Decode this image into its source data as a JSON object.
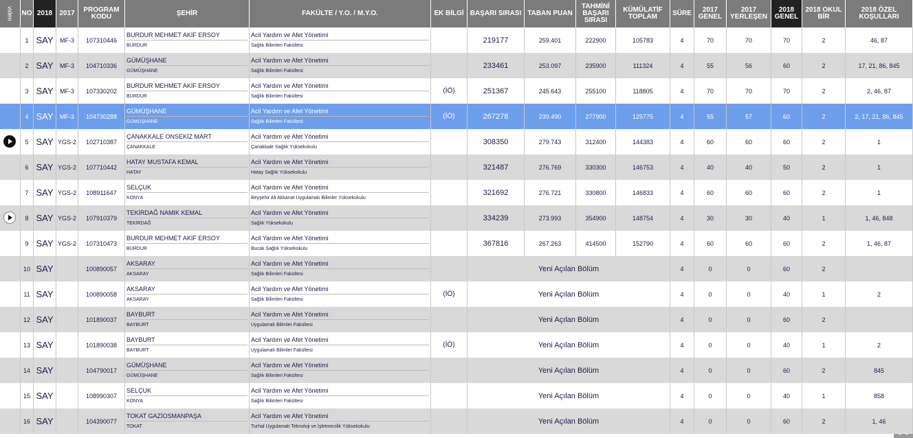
{
  "header": {
    "columns": [
      "video",
      "NO",
      "2018",
      "2017",
      "PROGRAM KODU",
      "ŞEHİR",
      "FAKÜLTE / Y.O. / M.Y.O.",
      "EK BİLGİ",
      "BAŞARI SIRASI",
      "TABAN PUAN",
      "TAHMİNİ BAŞARI SIRASI",
      "KÜMÜLATİF TOPLAM",
      "SÜRE",
      "2017 GENEL",
      "2017 YERLEŞEN",
      "2018 GENEL",
      "2018 OKUL BİR",
      "2018 ÖZEL KOŞULLARI"
    ]
  },
  "table": {
    "rows": [
      {
        "no": 1,
        "type2018": "SAY",
        "type2017": "MF-3",
        "code": "107310446",
        "university": "BURDUR MEHMET AKİF ERSOY",
        "city": "BURDUR",
        "program": "Acil Yardım ve Afet Yönetimi",
        "faculty": "Sağlık Bilimleri Fakültesi",
        "rank": 219177,
        "score": "259.401",
        "est_rank": 222900,
        "cumulative": 105783,
        "duration": 4,
        "quota2017": 70,
        "placed2017": 70,
        "quota2018": 70,
        "school_first": 2,
        "conditions": "46, 87"
      },
      {
        "no": 2,
        "type2018": "SAY",
        "type2017": "MF-3",
        "code": "104710336",
        "university": "GÜMÜŞHANE",
        "city": "GÜMÜŞHANE",
        "program": "Acil Yardım ve Afet Yönetimi",
        "faculty": "Sağlık Bilimleri Fakültesi",
        "rank": 233461,
        "score": "253.097",
        "est_rank": 235900,
        "cumulative": 111324,
        "duration": 4,
        "quota2017": 55,
        "placed2017": 56,
        "quota2018": 60,
        "school_first": 2,
        "conditions": "17, 21, 86, 845"
      },
      {
        "no": 3,
        "type2018": "SAY",
        "type2017": "MF-3",
        "code": "107330202",
        "university": "BURDUR MEHMET AKİF ERSOY",
        "city": "BURDUR",
        "program": "Acil Yardım ve Afet Yönetimi",
        "faculty": "Sağlık Bilimleri Fakültesi",
        "note": "(İÖ)",
        "rank": 251367,
        "score": "245.643",
        "est_rank": 255100,
        "cumulative": 118805,
        "duration": 4,
        "quota2017": 70,
        "placed2017": 70,
        "quota2018": 70,
        "school_first": 2,
        "conditions": "2, 46, 87"
      },
      {
        "no": 4,
        "type2018": "SAY",
        "type2017": "MF-3",
        "code": "104730288",
        "university": "GÜMÜŞHANE",
        "city": "GÜMÜŞHANE",
        "program": "Acil Yardım ve Afet Yönetimi",
        "faculty": "Sağlık Bilimleri Fakültesi",
        "note": "(İÖ)",
        "rank": 267278,
        "score": "239.490",
        "est_rank": 277900,
        "cumulative": 125775,
        "duration": 4,
        "quota2017": 55,
        "placed2017": 57,
        "quota2018": 60,
        "school_first": 2,
        "conditions": "2, 17, 21, 86, 845",
        "selected": true
      },
      {
        "no": 5,
        "video": true,
        "type2018": "SAY",
        "type2017": "YGS-2",
        "code": "102710387",
        "university": "ÇANAKKALE ONSEKİZ MART",
        "city": "ÇANAKKALE",
        "program": "Acil Yardım ve Afet Yönetimi",
        "faculty": "Çanakkale Sağlık Yüksekokulu",
        "rank": 308350,
        "score": "279.743",
        "est_rank": 312400,
        "cumulative": 144383,
        "duration": 4,
        "quota2017": 60,
        "placed2017": 60,
        "quota2018": 60,
        "school_first": 2,
        "conditions": "1"
      },
      {
        "no": 6,
        "type2018": "SAY",
        "type2017": "YGS-2",
        "code": "107710442",
        "university": "HATAY MUSTAFA KEMAL",
        "city": "HATAY",
        "program": "Acil Yardım ve Afet Yönetimi",
        "faculty": "Hatay Sağlık Yüksekokulu",
        "rank": 321487,
        "score": "276.769",
        "est_rank": 330300,
        "cumulative": 146753,
        "duration": 4,
        "quota2017": 40,
        "placed2017": 40,
        "quota2018": 50,
        "school_first": 2,
        "conditions": "1"
      },
      {
        "no": 7,
        "type2018": "SAY",
        "type2017": "YGS-2",
        "code": "108911647",
        "university": "SELÇUK",
        "city": "KONYA",
        "program": "Acil Yardım ve Afet Yönetimi",
        "faculty": "Beyşehir Ali Akkanat Uygulamalı Bilimler Yüksekokulu",
        "rank": 321692,
        "score": "276.721",
        "est_rank": 330800,
        "cumulative": 146833,
        "duration": 4,
        "quota2017": 60,
        "placed2017": 60,
        "quota2018": 60,
        "school_first": 2,
        "conditions": "1"
      },
      {
        "no": 8,
        "video": true,
        "type2018": "SAY",
        "type2017": "YGS-2",
        "code": "107910379",
        "university": "TEKİRDAĞ NAMIK KEMAL",
        "city": "TEKİRDAĞ",
        "program": "Acil Yardım ve Afet Yönetimi",
        "faculty": "Sağlık Yüksekokulu",
        "rank": 334239,
        "score": "273.993",
        "est_rank": 354900,
        "cumulative": 148754,
        "duration": 4,
        "quota2017": 30,
        "placed2017": 30,
        "quota2018": 40,
        "school_first": 1,
        "conditions": "1, 46, 848"
      },
      {
        "no": 9,
        "type2018": "SAY",
        "type2017": "YGS-2",
        "code": "107310473",
        "university": "BURDUR MEHMET AKİF ERSOY",
        "city": "BURDUR",
        "program": "Acil Yardım ve Afet Yönetimi",
        "faculty": "Bucak Sağlık Yüksekokulu",
        "rank": 367816,
        "score": "267.263",
        "est_rank": 414500,
        "cumulative": 152790,
        "duration": 4,
        "quota2017": 60,
        "placed2017": 60,
        "quota2018": 60,
        "school_first": 2,
        "conditions": "1, 46, 87"
      },
      {
        "no": 10,
        "type2018": "SAY",
        "code": "100890057",
        "university": "AKSARAY",
        "city": "AKSARAY",
        "program": "Acil Yardım ve Afet Yönetimi",
        "faculty": "Sağlık Bilimleri Fakültesi",
        "status": "Yeni Açılan Bölüm",
        "duration": 4,
        "quota2017": 0,
        "placed2017": 0,
        "quota2018": 60,
        "school_first": 2
      },
      {
        "no": 11,
        "type2018": "SAY",
        "code": "100890058",
        "university": "AKSARAY",
        "city": "AKSARAY",
        "program": "Acil Yardım ve Afet Yönetimi",
        "faculty": "Sağlık Bilimleri Fakültesi",
        "note": "(İÖ)",
        "status": "Yeni Açılan Bölüm",
        "duration": 4,
        "quota2017": 0,
        "placed2017": 0,
        "quota2018": 40,
        "school_first": 1,
        "conditions": "2"
      },
      {
        "no": 12,
        "type2018": "SAY",
        "code": "101890037",
        "university": "BAYBURT",
        "city": "BAYBURT",
        "program": "Acil Yardım ve Afet Yönetimi",
        "faculty": "Uygulamalı Bilimler Fakültesi",
        "status": "Yeni Açılan Bölüm",
        "duration": 4,
        "quota2017": 0,
        "placed2017": 0,
        "quota2018": 60,
        "school_first": 2
      },
      {
        "no": 13,
        "type2018": "SAY",
        "code": "101890038",
        "university": "BAYBURT",
        "city": "BAYBURT",
        "program": "Acil Yardım ve Afet Yönetimi",
        "faculty": "Uygulamalı Bilimler Fakültesi",
        "note": "(İÖ)",
        "status": "Yeni Açılan Bölüm",
        "duration": 4,
        "quota2017": 0,
        "placed2017": 0,
        "quota2018": 40,
        "school_first": 1,
        "conditions": "2"
      },
      {
        "no": 14,
        "type2018": "SAY",
        "code": "104790017",
        "university": "GÜMÜŞHANE",
        "city": "GÜMÜŞHANE",
        "program": "Acil Yardım ve Afet Yönetimi",
        "faculty": "Sağlık Bilimleri Fakültesi",
        "status": "Yeni Açılan Bölüm",
        "duration": 4,
        "quota2017": 0,
        "placed2017": 0,
        "quota2018": 60,
        "school_first": 2,
        "conditions": "845"
      },
      {
        "no": 15,
        "type2018": "SAY",
        "code": "108990307",
        "university": "SELÇUK",
        "city": "KONYA",
        "program": "Acil Yardım ve Afet Yönetimi",
        "faculty": "Sağlık Bilimleri Fakültesi",
        "status": "Yeni Açılan Bölüm",
        "duration": 4,
        "quota2017": 0,
        "placed2017": 0,
        "quota2018": 40,
        "school_first": 1,
        "conditions": "858"
      },
      {
        "no": 16,
        "type2018": "SAY",
        "code": "104390077",
        "university": "TOKAT GAZİOSMANPAŞA",
        "city": "TOKAT",
        "program": "Acil Yardım ve Afet Yönetimi",
        "faculty": "Turhal Uygulamalı Teknoloji ve İşletmecilik Yüksekokulu",
        "status": "Yeni Açılan Bölüm",
        "duration": 4,
        "quota2017": 0,
        "placed2017": 0,
        "quota2018": 60,
        "school_first": 2,
        "conditions": "1, 46"
      }
    ]
  }
}
